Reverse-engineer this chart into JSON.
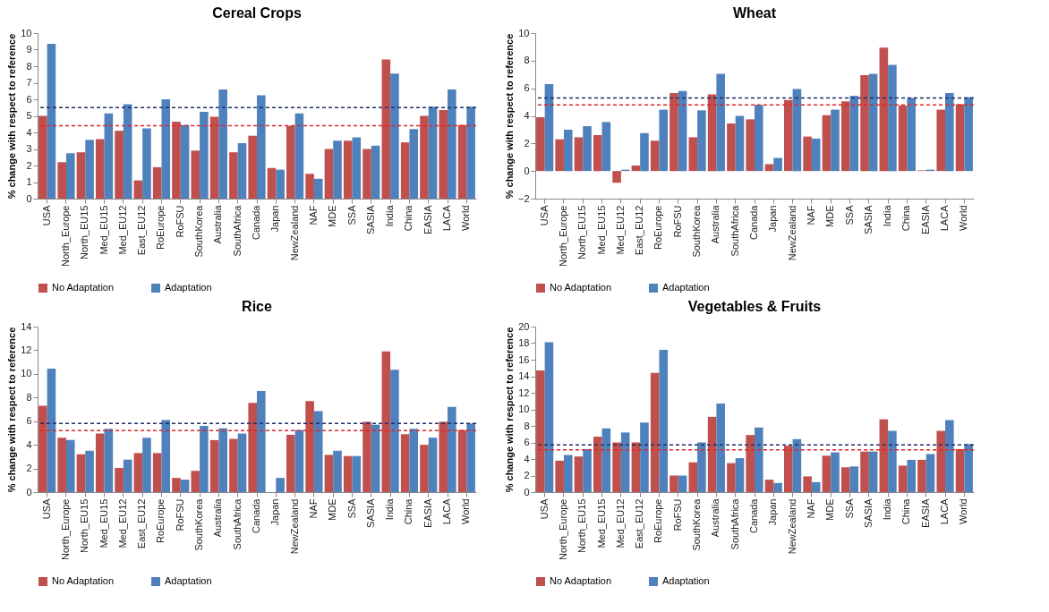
{
  "chart_data": [
    {
      "type": "bar",
      "title": "Cereal Crops",
      "ylabel": "% change with respect to reference",
      "categories": [
        "USA",
        "North_Europe",
        "North_EU15",
        "Med_EU15",
        "Med_EU12",
        "East_EU12",
        "RoEurope",
        "RoFSU",
        "SouthKorea",
        "Australia",
        "SouthAfrica",
        "Canada",
        "Japan",
        "NewZealand",
        "NAF",
        "MDE",
        "SSA",
        "SASIA",
        "India",
        "China",
        "EASIA",
        "LACA",
        "World"
      ],
      "series": [
        {
          "name": "No Adaptation",
          "color": "#c0504d",
          "values": [
            5.0,
            2.2,
            2.8,
            3.6,
            4.1,
            1.1,
            1.9,
            4.65,
            2.9,
            4.95,
            2.8,
            3.8,
            1.85,
            4.4,
            1.5,
            3.0,
            3.5,
            3.0,
            8.4,
            3.4,
            5.0,
            5.35,
            4.45
          ]
        },
        {
          "name": "Adaptation",
          "color": "#4f81bd",
          "values": [
            9.35,
            2.75,
            3.55,
            5.15,
            5.7,
            4.25,
            6.0,
            4.45,
            5.25,
            6.6,
            3.35,
            6.25,
            1.75,
            5.15,
            1.2,
            3.5,
            3.7,
            3.2,
            7.55,
            4.2,
            5.55,
            6.6,
            5.55
          ]
        }
      ],
      "ylim": [
        0,
        10
      ],
      "yticks": [
        0,
        1,
        2,
        3,
        4,
        5,
        6,
        7,
        8,
        9,
        10
      ],
      "grid": false,
      "legend": "bottom",
      "ref_lines": [
        {
          "axis": "y",
          "value": 4.4,
          "color": "#e02626",
          "line_style": "dashed"
        },
        {
          "axis": "y",
          "value": 5.5,
          "color": "#1f2f6b",
          "line_style": "dashed"
        }
      ]
    },
    {
      "type": "bar",
      "title": "Wheat",
      "ylabel": "% change with respect to reference",
      "categories": [
        "USA",
        "North_Europe",
        "North_EU15",
        "Med_EU15",
        "Med_EU12",
        "East_EU12",
        "RoEurope",
        "RoFSU",
        "SouthKorea",
        "Australia",
        "SouthAfrica",
        "Canada",
        "Japan",
        "NewZealand",
        "NAF",
        "MDE",
        "SSA",
        "SASIA",
        "India",
        "China",
        "EASIA",
        "LACA",
        "World"
      ],
      "series": [
        {
          "name": "No Adaptation",
          "color": "#c0504d",
          "values": [
            3.9,
            2.3,
            2.45,
            2.6,
            -0.85,
            0.4,
            2.2,
            5.65,
            2.45,
            5.55,
            3.45,
            3.75,
            0.5,
            5.15,
            2.5,
            4.05,
            5.05,
            6.95,
            8.95,
            4.75,
            0.05,
            4.45,
            4.85
          ]
        },
        {
          "name": "Adaptation",
          "color": "#4f81bd",
          "values": [
            6.3,
            3.0,
            3.25,
            3.55,
            0.1,
            2.75,
            4.45,
            5.8,
            4.4,
            7.05,
            4.0,
            4.8,
            0.95,
            5.95,
            2.35,
            4.45,
            5.45,
            7.05,
            7.7,
            5.3,
            0.1,
            5.65,
            5.35
          ]
        }
      ],
      "ylim": [
        -2,
        10
      ],
      "yticks": [
        -2,
        0,
        2,
        4,
        6,
        8,
        10
      ],
      "grid": false,
      "legend": "bottom",
      "ref_lines": [
        {
          "axis": "y",
          "value": 4.8,
          "color": "#e02626",
          "line_style": "dashed"
        },
        {
          "axis": "y",
          "value": 5.3,
          "color": "#1f2f6b",
          "line_style": "dashed"
        }
      ]
    },
    {
      "type": "bar",
      "title": "Rice",
      "ylabel": "% change with respect to reference",
      "categories": [
        "USA",
        "North_Europe",
        "North_EU15",
        "Med_EU15",
        "Med_EU12",
        "East_EU12",
        "RoEurope",
        "RoFSU",
        "SouthKorea",
        "Australia",
        "SouthAfrica",
        "Canada",
        "Japan",
        "NewZealand",
        "NAF",
        "MDE",
        "SSA",
        "SASIA",
        "India",
        "China",
        "EASIA",
        "LACA",
        "World"
      ],
      "series": [
        {
          "name": "No Adaptation",
          "color": "#c0504d",
          "values": [
            7.3,
            4.6,
            3.2,
            4.95,
            2.05,
            3.3,
            3.3,
            1.2,
            1.8,
            4.4,
            4.5,
            7.55,
            0,
            4.85,
            7.7,
            3.15,
            3.05,
            5.95,
            11.9,
            4.9,
            4.0,
            5.95,
            5.25
          ]
        },
        {
          "name": "Adaptation",
          "color": "#4f81bd",
          "values": [
            10.45,
            4.4,
            3.5,
            5.35,
            2.75,
            4.6,
            6.1,
            1.05,
            5.6,
            5.4,
            4.95,
            8.55,
            1.2,
            5.25,
            6.85,
            3.5,
            3.05,
            5.7,
            10.35,
            5.35,
            4.6,
            7.2,
            5.8
          ]
        }
      ],
      "ylim": [
        0,
        14
      ],
      "yticks": [
        0,
        2,
        4,
        6,
        8,
        10,
        12,
        14
      ],
      "grid": false,
      "legend": "bottom",
      "ref_lines": [
        {
          "axis": "y",
          "value": 5.2,
          "color": "#e02626",
          "line_style": "dashed"
        },
        {
          "axis": "y",
          "value": 5.8,
          "color": "#1f2f6b",
          "line_style": "dashed"
        }
      ]
    },
    {
      "type": "bar",
      "title": "Vegetables & Fruits",
      "ylabel": "% change with respect to reference",
      "categories": [
        "USA",
        "North_Europe",
        "North_EU15",
        "Med_EU15",
        "Med_EU12",
        "East_EU12",
        "RoEurope",
        "RoFSU",
        "SouthKorea",
        "Australia",
        "SouthAfrica",
        "Canada",
        "Japan",
        "NewZealand",
        "NAF",
        "MDE",
        "SSA",
        "SASIA",
        "India",
        "China",
        "EASIA",
        "LACA",
        "World"
      ],
      "series": [
        {
          "name": "No Adaptation",
          "color": "#c0504d",
          "values": [
            14.7,
            3.8,
            4.3,
            6.7,
            6.0,
            6.0,
            14.4,
            2.0,
            3.6,
            9.1,
            3.5,
            6.9,
            1.5,
            5.6,
            1.9,
            4.4,
            3.0,
            4.9,
            8.8,
            3.2,
            3.9,
            7.4,
            5.2
          ]
        },
        {
          "name": "Adaptation",
          "color": "#4f81bd",
          "values": [
            18.1,
            4.5,
            5.2,
            7.7,
            7.2,
            8.4,
            17.2,
            2.0,
            6.0,
            10.7,
            4.1,
            7.8,
            1.1,
            6.4,
            1.2,
            4.8,
            3.1,
            4.9,
            7.4,
            3.9,
            4.6,
            8.7,
            5.8
          ]
        }
      ],
      "ylim": [
        0,
        20
      ],
      "yticks": [
        0,
        2,
        4,
        6,
        8,
        10,
        12,
        14,
        16,
        18,
        20
      ],
      "grid": false,
      "legend": "bottom",
      "ref_lines": [
        {
          "axis": "y",
          "value": 5.1,
          "color": "#e02626",
          "line_style": "dashed"
        },
        {
          "axis": "y",
          "value": 5.7,
          "color": "#1f2f6b",
          "line_style": "dashed"
        }
      ]
    }
  ]
}
